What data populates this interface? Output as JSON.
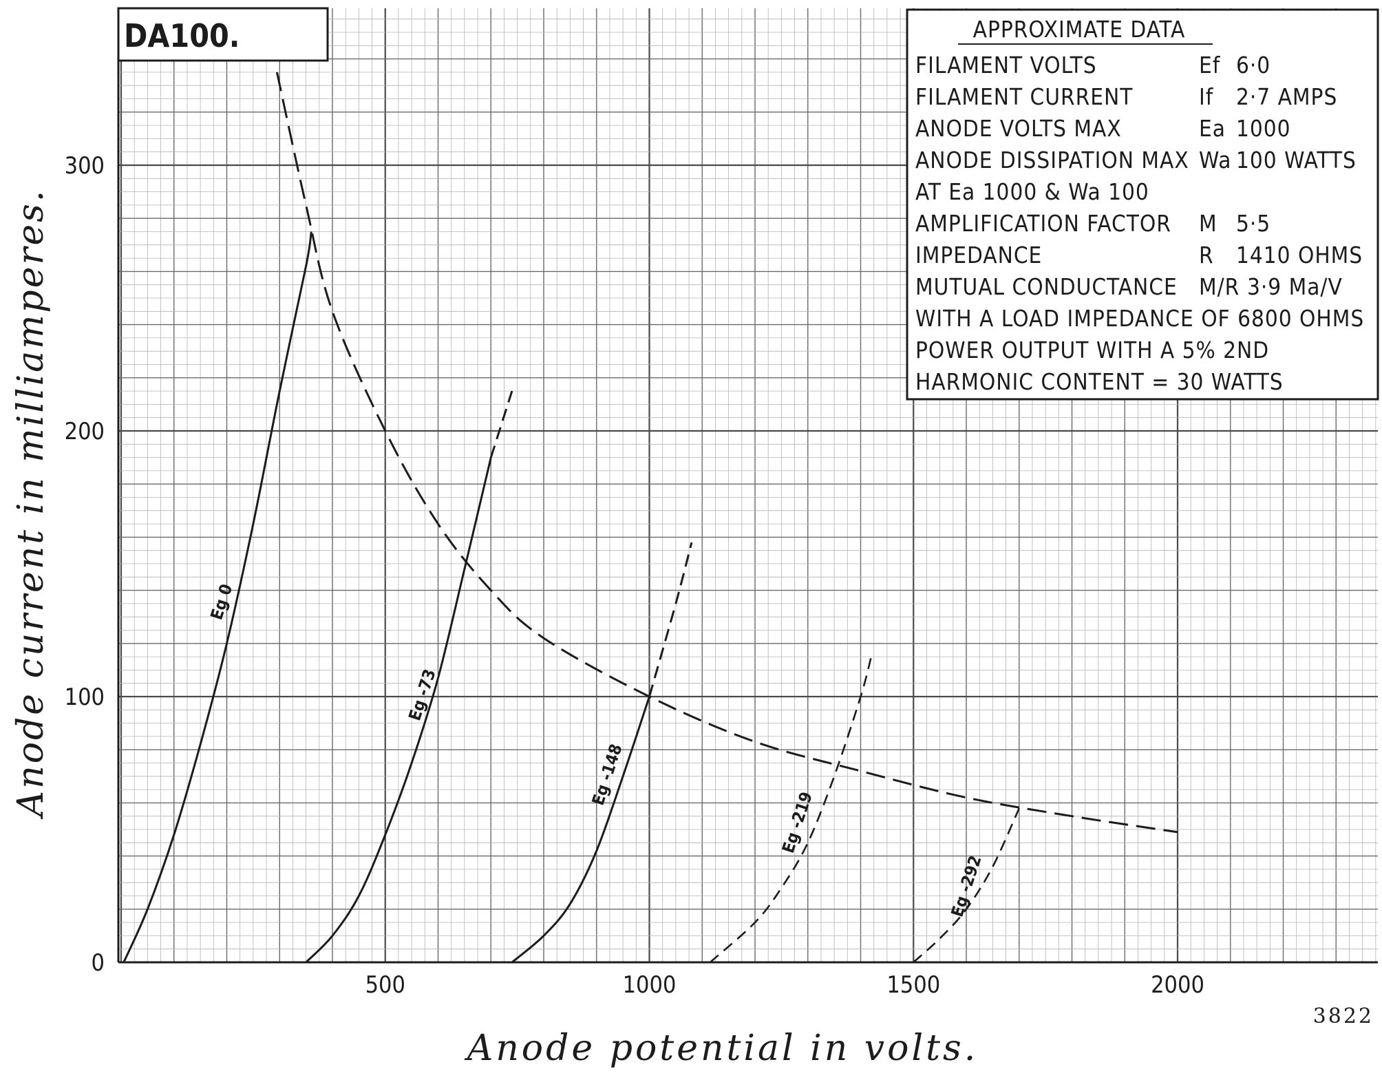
{
  "chart_data": {
    "type": "line",
    "title": "DA100.",
    "xlabel": "Anode potential in volts.",
    "ylabel": "Anode current in milliamperes.",
    "xlim": [
      0,
      2400
    ],
    "ylim": [
      0,
      360
    ],
    "x_ticks": [
      {
        "value": 500,
        "label": "500"
      },
      {
        "value": 1000,
        "label": "1000"
      },
      {
        "value": 1500,
        "label": "1500"
      },
      {
        "value": 2000,
        "label": "2000"
      }
    ],
    "y_ticks": [
      {
        "value": 0,
        "label": "0"
      },
      {
        "value": 100,
        "label": "100"
      },
      {
        "value": 200,
        "label": "200"
      },
      {
        "value": 300,
        "label": "300"
      }
    ],
    "grid": true,
    "series": [
      {
        "name": "Eg 0",
        "style": "solid",
        "x": [
          5,
          50,
          100,
          150,
          200,
          250,
          300,
          350,
          360
        ],
        "y": [
          0,
          20,
          48,
          82,
          120,
          165,
          215,
          262,
          275
        ],
        "label_at": [
          200,
          135
        ]
      },
      {
        "name": "Eg -73",
        "style": "solid",
        "dash_from_y": 160,
        "x": [
          350,
          400,
          450,
          500,
          550,
          600,
          650,
          700,
          740
        ],
        "y": [
          0,
          10,
          25,
          48,
          75,
          107,
          148,
          190,
          215
        ],
        "label_at": [
          580,
          100
        ]
      },
      {
        "name": "Eg -148",
        "style": "solid",
        "dash_from_y": 100,
        "x": [
          740,
          800,
          850,
          900,
          950,
          1000,
          1050,
          1080
        ],
        "y": [
          0,
          10,
          22,
          42,
          70,
          100,
          135,
          158
        ],
        "label_at": [
          930,
          70
        ]
      },
      {
        "name": "Eg -219",
        "style": "dashed",
        "x": [
          1115,
          1200,
          1250,
          1300,
          1350,
          1400,
          1420
        ],
        "y": [
          0,
          15,
          28,
          45,
          70,
          100,
          115
        ],
        "label_at": [
          1290,
          52
        ]
      },
      {
        "name": "Eg -292",
        "style": "dashed",
        "x": [
          1500,
          1550,
          1600,
          1650,
          1700
        ],
        "y": [
          0,
          9,
          20,
          36,
          58
        ],
        "label_at": [
          1610,
          28
        ]
      },
      {
        "name": "",
        "style": "long-dashed",
        "role": "max anode dissipation (100 W)",
        "x": [
          295,
          350,
          400,
          500,
          600,
          700,
          800,
          1000,
          1200,
          1400,
          1600,
          1800,
          2000
        ],
        "y": [
          335,
          285,
          245,
          200,
          165,
          140,
          122,
          100,
          83,
          72,
          62,
          55,
          49
        ]
      }
    ],
    "annotations": [
      "3822"
    ]
  },
  "data_panel": {
    "heading": "APPROXIMATE DATA",
    "rows": [
      {
        "label": "FILAMENT VOLTS",
        "symbol": "Ef",
        "value": "6·0"
      },
      {
        "label": "FILAMENT CURRENT",
        "symbol": "If",
        "value": "2·7 AMPS"
      },
      {
        "label": "ANODE VOLTS MAX",
        "symbol": "Ea",
        "value": "1000"
      },
      {
        "label": "ANODE DISSIPATION MAX",
        "symbol": "Wa",
        "value": "100 WATTS"
      },
      {
        "label": "AT Ea 1000 & Wa 100",
        "symbol": "",
        "value": ""
      },
      {
        "label": "AMPLIFICATION FACTOR",
        "symbol": "M",
        "value": "5·5"
      },
      {
        "label": "IMPEDANCE",
        "symbol": "R",
        "value": "1410 OHMS"
      },
      {
        "label": "MUTUAL CONDUCTANCE",
        "symbol": "M/R",
        "value": "3·9 Ma/V"
      },
      {
        "label": "WITH A LOAD IMPEDANCE OF 6800 OHMS",
        "symbol": "",
        "value": ""
      },
      {
        "label": "POWER OUTPUT WITH A 5% 2ND",
        "symbol": "",
        "value": ""
      },
      {
        "label": "HARMONIC CONTENT = 30 WATTS",
        "symbol": "",
        "value": ""
      }
    ]
  }
}
